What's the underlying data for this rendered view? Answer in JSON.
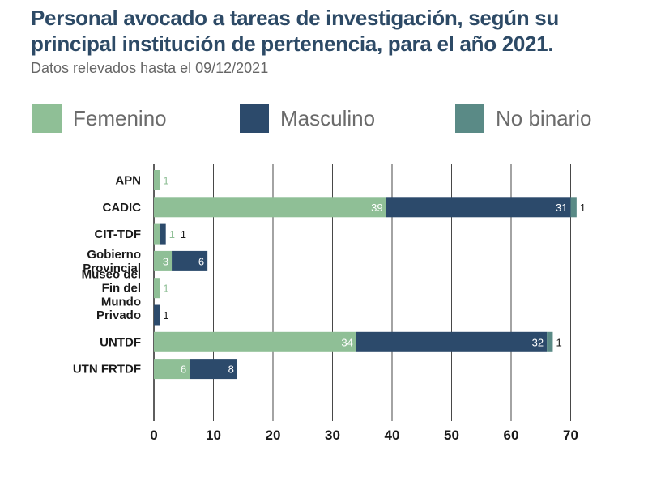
{
  "title": "Personal avocado a tareas de investigación, según su principal institución de pertenencia, para el año 2021.",
  "subtitle": "Datos relevados hasta el 09/12/2021",
  "legend": [
    {
      "label": "Femenino",
      "color": "#8fbf96"
    },
    {
      "label": "Masculino",
      "color": "#2c4a6b"
    },
    {
      "label": "No binario",
      "color": "#5a8a86"
    }
  ],
  "chart_data": {
    "type": "bar",
    "orientation": "horizontal",
    "stacked": true,
    "categories": [
      "APN",
      "CADIC",
      "CIT-TDF",
      "Gobierno Provincial",
      "Museo del Fin del Mundo",
      "Privado",
      "UNTDF",
      "UTN FRTDF"
    ],
    "series": [
      {
        "name": "Femenino",
        "color": "#8fbf96",
        "values": [
          1,
          39,
          1,
          3,
          1,
          0,
          34,
          6
        ]
      },
      {
        "name": "Masculino",
        "color": "#2c4a6b",
        "values": [
          0,
          31,
          1,
          6,
          0,
          1,
          32,
          8
        ]
      },
      {
        "name": "No binario",
        "color": "#5a8a86",
        "values": [
          0,
          1,
          0,
          0,
          0,
          0,
          1,
          0
        ]
      }
    ],
    "xlim": [
      0,
      70
    ],
    "xticks": [
      0,
      10,
      20,
      30,
      40,
      50,
      60,
      70
    ],
    "grid": true,
    "legend_position": "top"
  }
}
